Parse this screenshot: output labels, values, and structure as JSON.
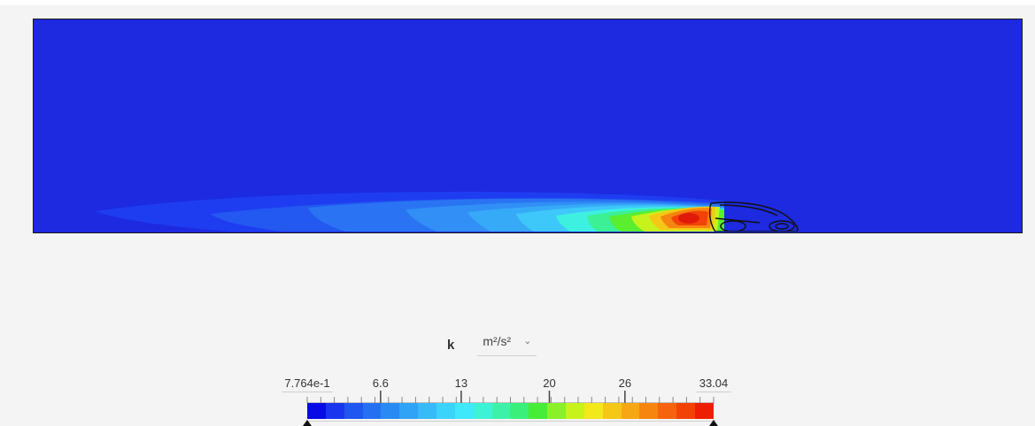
{
  "viewer": {
    "quantity": "k",
    "unit": "m²/s²",
    "background_color": "#1d2ae0",
    "colormap": [
      "#0a0ae6",
      "#1a35ee",
      "#1f55f0",
      "#2470f2",
      "#2a8af4",
      "#30a3f6",
      "#36bbf8",
      "#3cd3fa",
      "#40e8fb",
      "#3ef2d6",
      "#3df2a8",
      "#3bf07a",
      "#45ec38",
      "#8af02a",
      "#c8f21c",
      "#f3e81a",
      "#f5c716",
      "#f6a713",
      "#f6850f",
      "#f5640c",
      "#f24208",
      "#ee1e05"
    ]
  },
  "legend": {
    "min_label": "7.764e-1",
    "max_label": "33.04",
    "min_value": 0.7764,
    "max_value": 33.04,
    "ticks": [
      {
        "label": "6.6",
        "value": 6.6
      },
      {
        "label": "13",
        "value": 13
      },
      {
        "label": "20",
        "value": 20
      },
      {
        "label": "26",
        "value": 26
      }
    ]
  }
}
